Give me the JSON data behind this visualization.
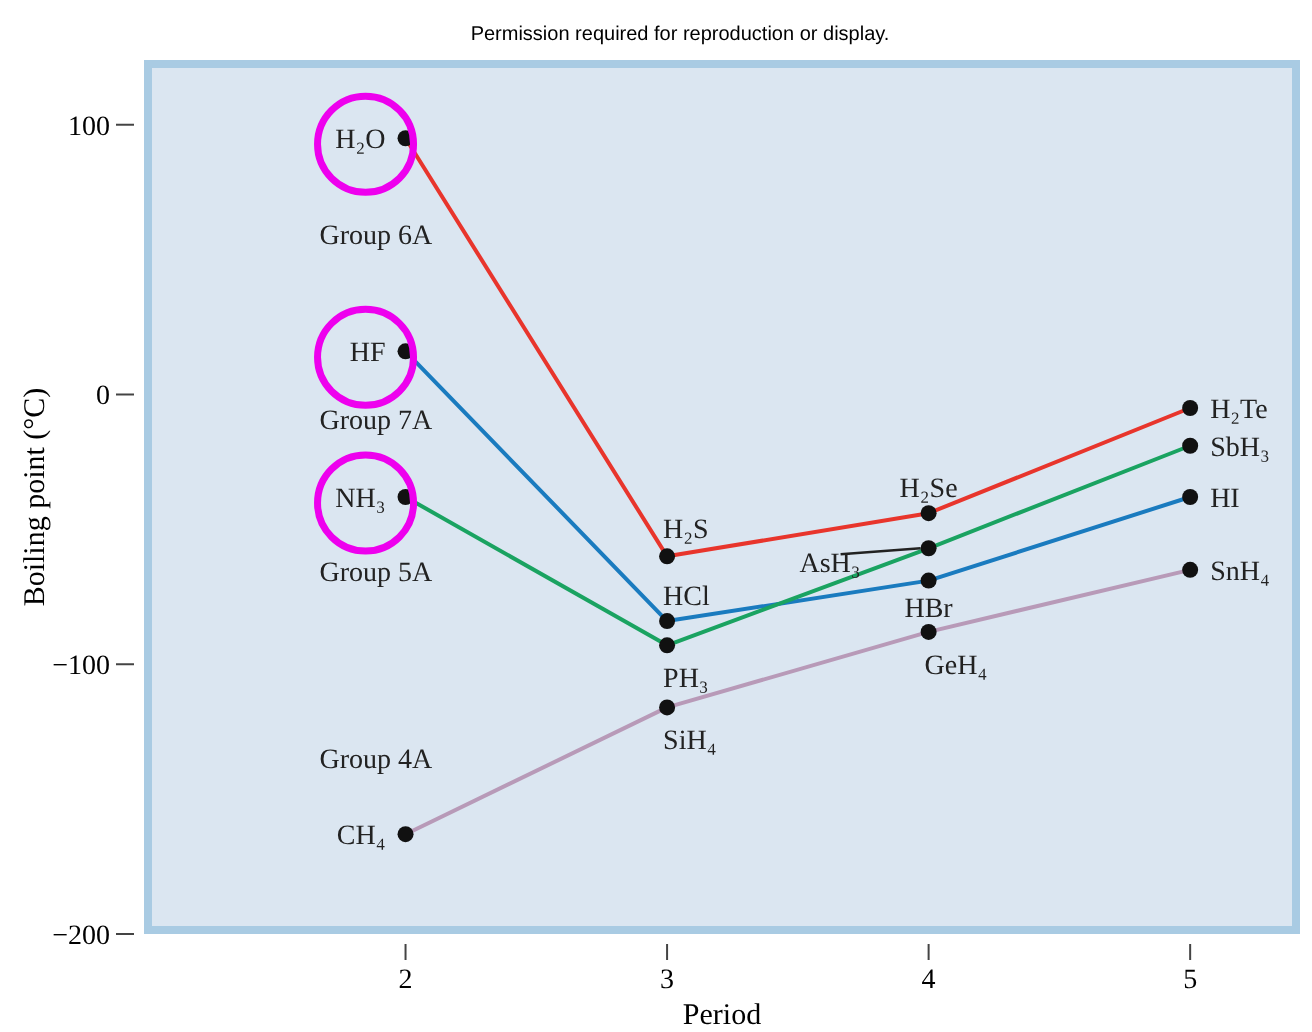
{
  "chart_data": {
    "type": "line",
    "xlabel": "Period",
    "ylabel": "Boiling point (°C)",
    "x": [
      2,
      3,
      4,
      5
    ],
    "xlim": [
      1,
      5.42
    ],
    "ylim": [
      -200,
      124
    ],
    "xticks": [
      2,
      3,
      4,
      5
    ],
    "yticks": [
      -200,
      -100,
      0,
      100
    ],
    "grid": false,
    "marker": "circle",
    "line_style": "solid",
    "series": [
      {
        "name": "Group 6A",
        "color": "#e8352c",
        "values": [
          95,
          -60,
          -44,
          -5
        ]
      },
      {
        "name": "Group 7A",
        "color": "#1a7bbf",
        "values": [
          16,
          -84,
          -69,
          -38
        ]
      },
      {
        "name": "Group 5A",
        "color": "#1aa361",
        "values": [
          -38,
          -93,
          -57,
          -19
        ]
      },
      {
        "name": "Group 4A",
        "color": "#b89ab8",
        "values": [
          -163,
          -116,
          -88,
          -65
        ]
      }
    ],
    "annotations": [
      {
        "text": "H₂O",
        "x": 2,
        "y": 95
      },
      {
        "text": "HF",
        "x": 2,
        "y": 16
      },
      {
        "text": "NH₃",
        "x": 2,
        "y": -38
      },
      {
        "text": "CH₄",
        "x": 2,
        "y": -163
      },
      {
        "text": "H₂S",
        "x": 3,
        "y": -60
      },
      {
        "text": "HCl",
        "x": 3,
        "y": -84
      },
      {
        "text": "PH₃",
        "x": 3,
        "y": -93
      },
      {
        "text": "SiH₄",
        "x": 3,
        "y": -116
      },
      {
        "text": "H₂Se",
        "x": 4,
        "y": -44
      },
      {
        "text": "AsH₃",
        "x": 4,
        "y": -57
      },
      {
        "text": "HBr",
        "x": 4,
        "y": -69
      },
      {
        "text": "GeH₄",
        "x": 4,
        "y": -88
      },
      {
        "text": "H₂Te",
        "x": 5,
        "y": -5
      },
      {
        "text": "SbH₃",
        "x": 5,
        "y": -19
      },
      {
        "text": "HI",
        "x": 5,
        "y": -38
      },
      {
        "text": "SnH₄",
        "x": 5,
        "y": -65
      },
      "Permission required for reproduction or display."
    ]
  }
}
